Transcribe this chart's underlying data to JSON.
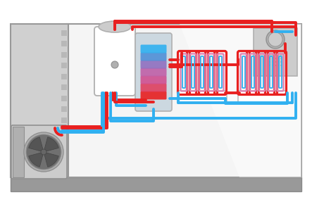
{
  "bg_color": "#ffffff",
  "red": "#e82020",
  "blue": "#30b0f0",
  "pink": "#e080b0",
  "coil_purple": "#b060b0",
  "wall_color": "#d0d0d0",
  "wall_dark": "#b8b8b8",
  "room_color": "#ebebeb",
  "room_light": "#f5f5f5",
  "floor_color": "#999999",
  "floor_dark": "#888888",
  "unit_light": "#cccccc",
  "unit_mid": "#b0b0b0",
  "unit_dark": "#909090",
  "unit_darker": "#707070",
  "white": "#ffffff",
  "border": "#999999",
  "lw_pipe": 2.8,
  "figsize": [
    4.43,
    2.8
  ],
  "dpi": 100
}
